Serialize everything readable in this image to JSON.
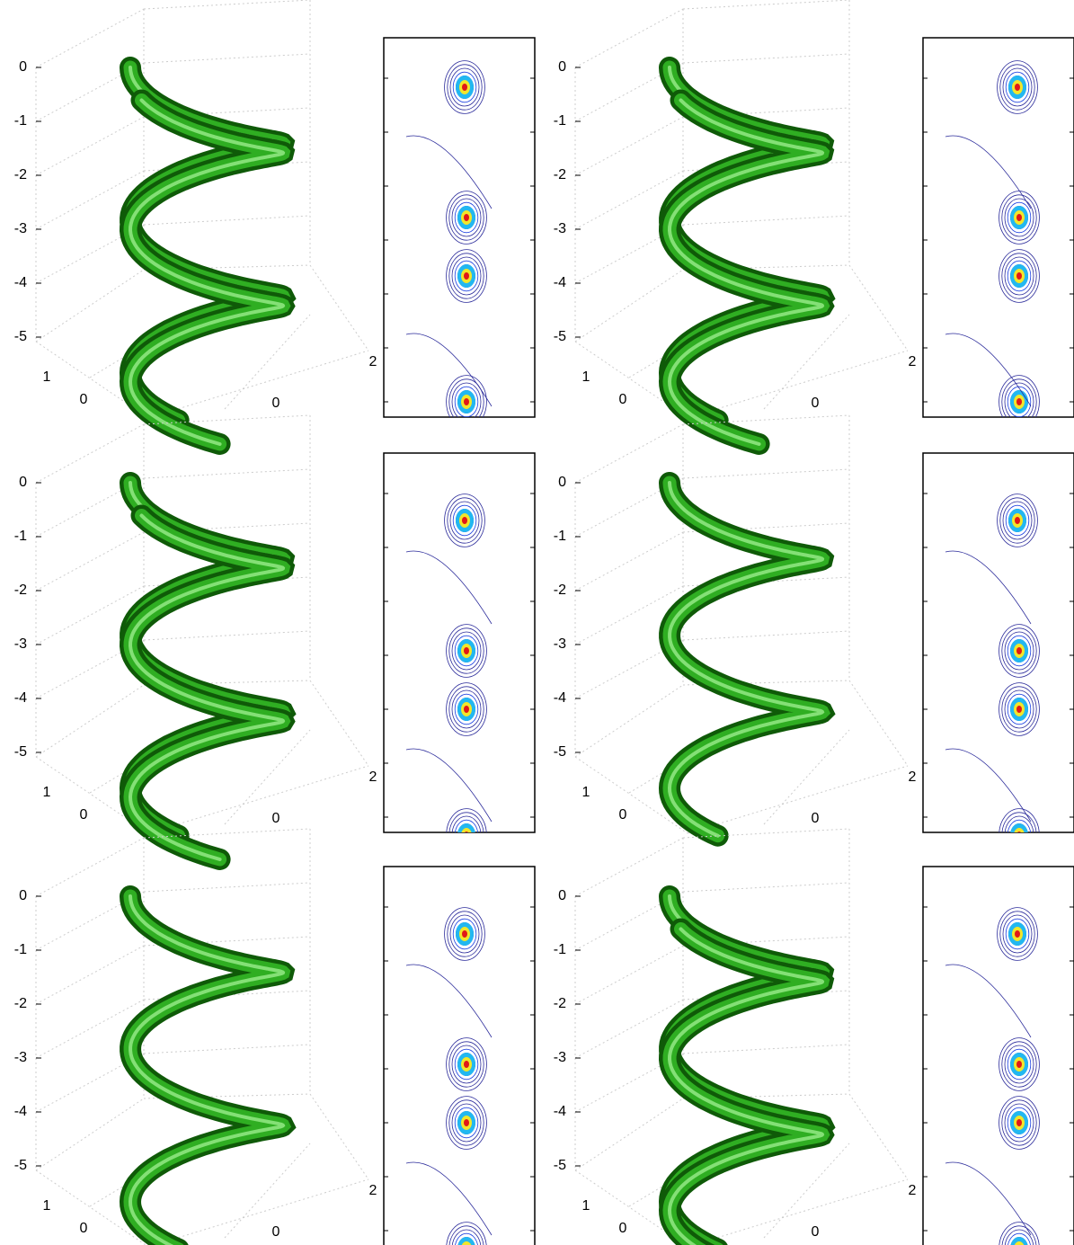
{
  "panels": [
    {
      "z_ticks": [
        "0",
        "-1",
        "-2",
        "-3",
        "-4",
        "-5"
      ],
      "y_ticks": [
        "1",
        "0"
      ],
      "x_ticks": [
        "0",
        "2"
      ]
    },
    {
      "z_ticks": [
        "0",
        "-1",
        "-2",
        "-3",
        "-4",
        "-5"
      ],
      "y_ticks": [
        "1",
        "0"
      ],
      "x_ticks": [
        "0",
        "2"
      ]
    },
    {
      "z_ticks": [
        "0",
        "-1",
        "-2",
        "-3",
        "-4",
        "-5"
      ],
      "y_ticks": [
        "1",
        "0"
      ],
      "x_ticks": [
        "0",
        "2"
      ]
    },
    {
      "z_ticks": [
        "0",
        "-1",
        "-2",
        "-3",
        "-4",
        "-5"
      ],
      "y_ticks": [
        "1",
        "0"
      ],
      "x_ticks": [
        "0",
        "2"
      ]
    },
    {
      "z_ticks": [
        "0",
        "-1",
        "-2",
        "-3",
        "-4",
        "-5"
      ],
      "y_ticks": [
        "1",
        "0"
      ],
      "x_ticks": [
        "0",
        "2"
      ]
    },
    {
      "z_ticks": [
        "0",
        "-1",
        "-2",
        "-3",
        "-4",
        "-5"
      ],
      "y_ticks": [
        "1",
        "0"
      ],
      "x_ticks": [
        "0",
        "2"
      ]
    }
  ]
}
